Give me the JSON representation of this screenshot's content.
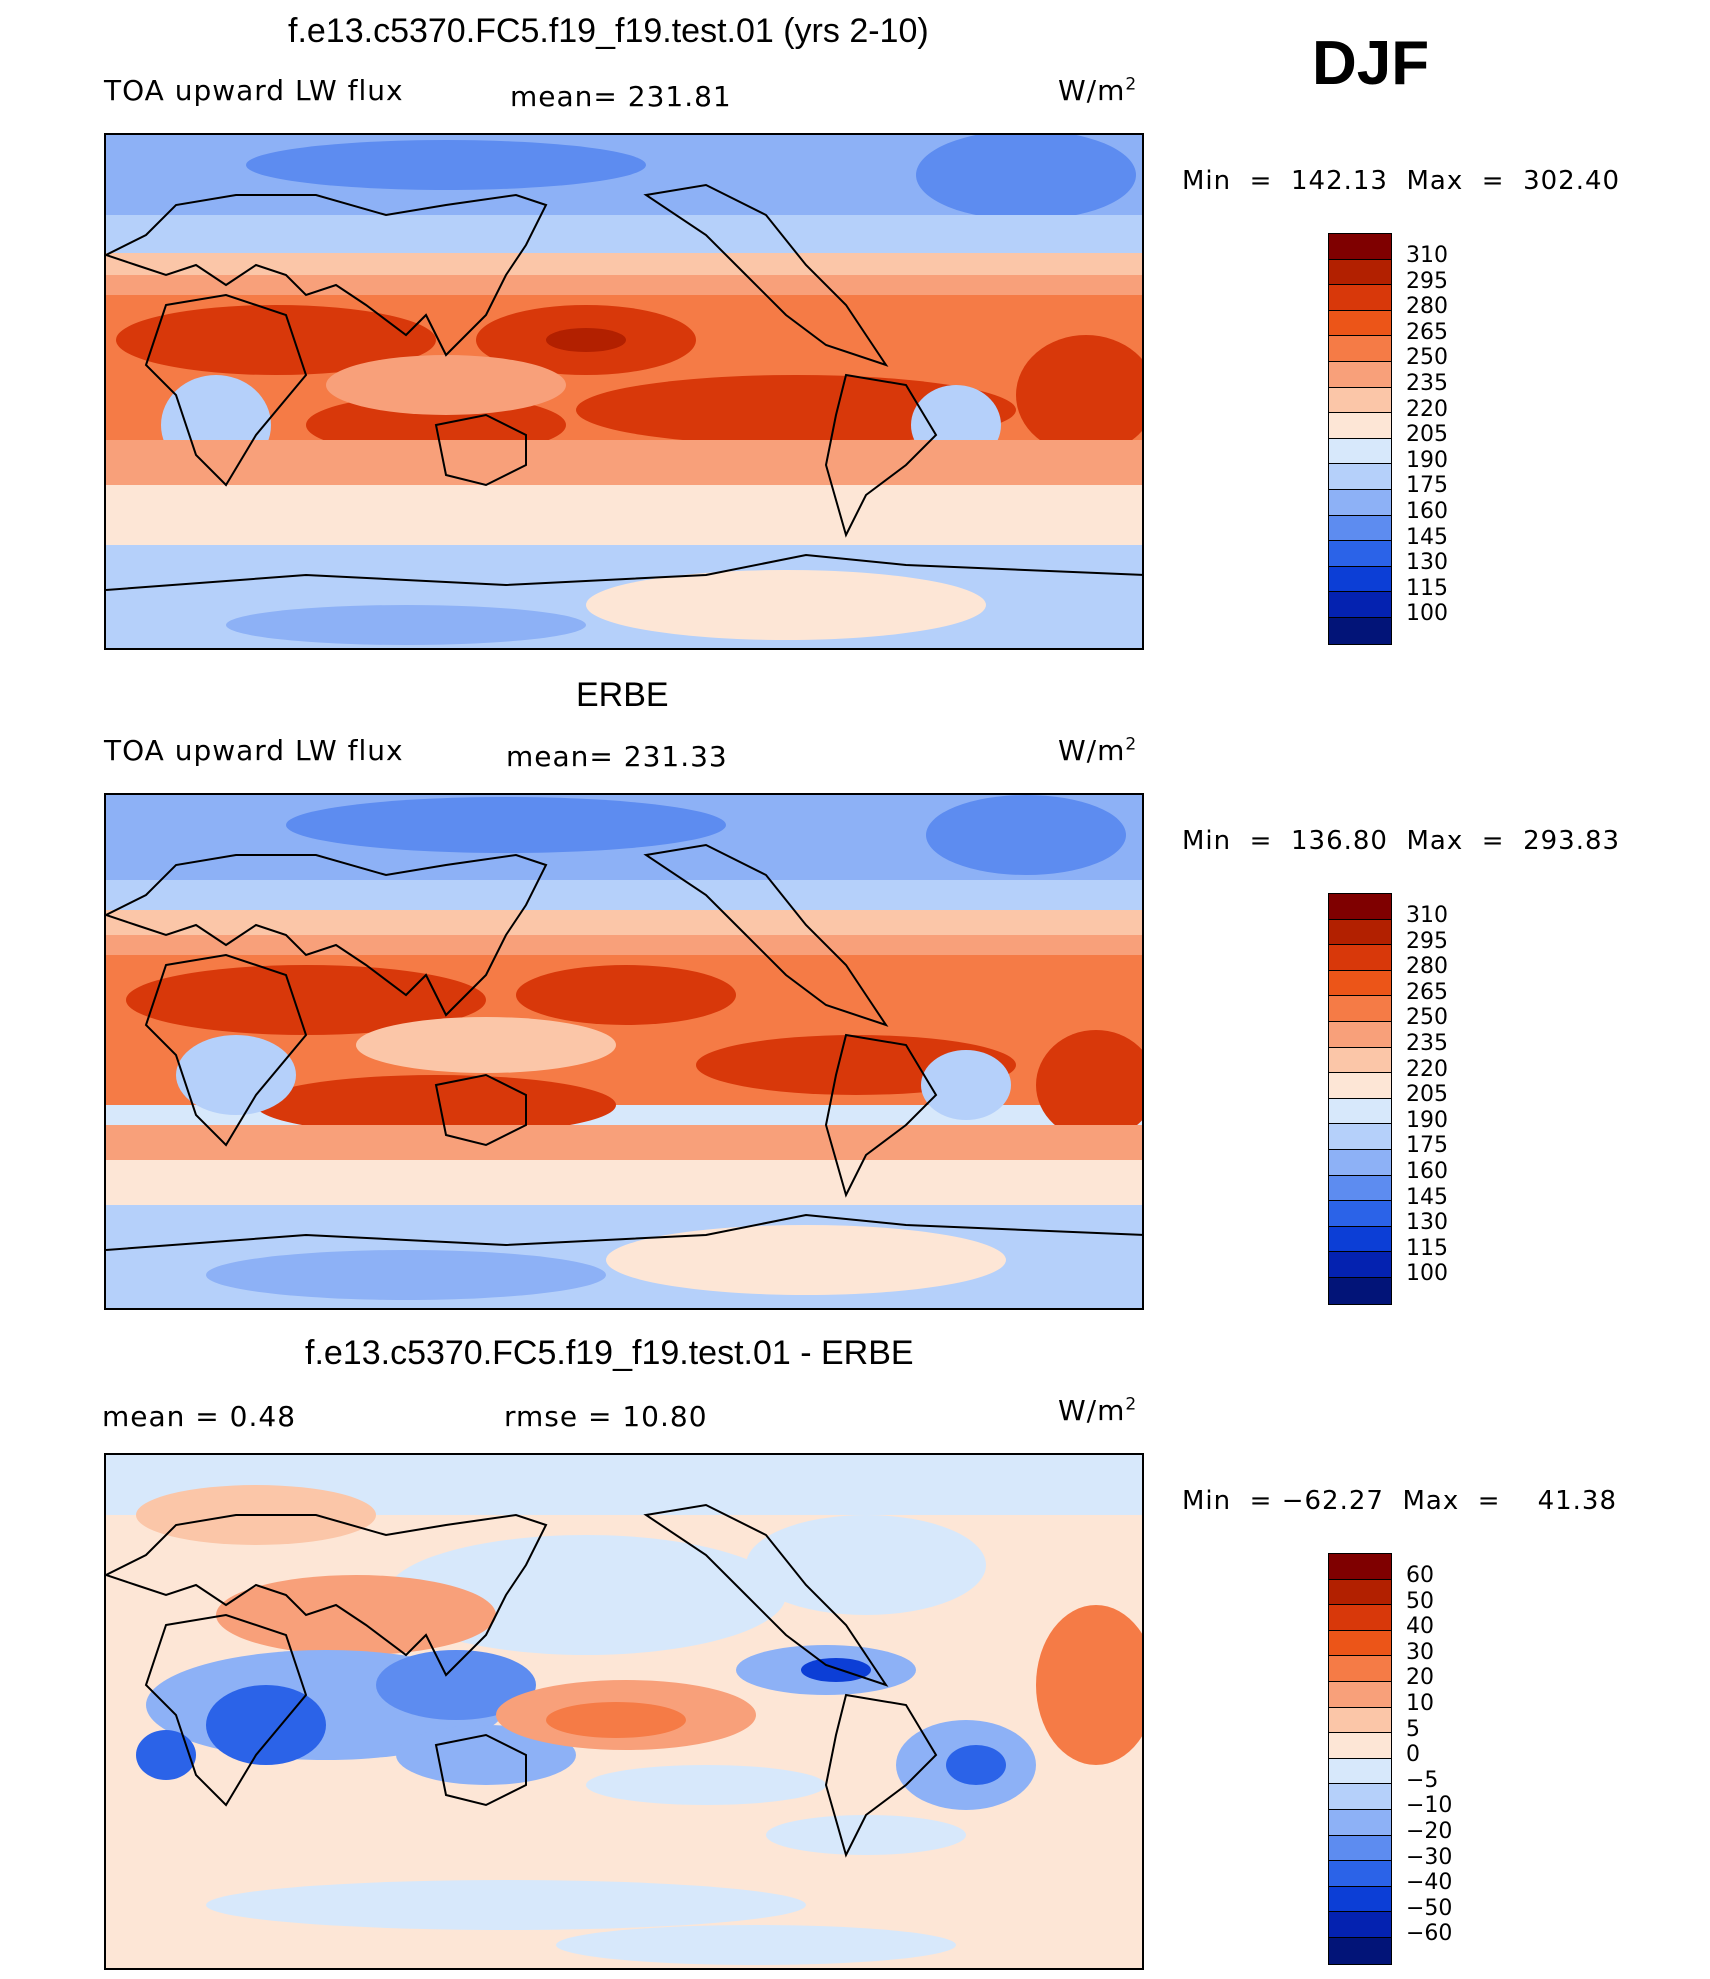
{
  "season": "DJF",
  "panels": [
    {
      "title": "f.e13.c5370.FC5.f19_f19.test.01 (yrs 2-10)",
      "left_label": "TOA upward LW flux",
      "mid_label": "mean= 231.81",
      "units_base": "W/m",
      "units_exp": "2",
      "minmax": "Min  =  142.13  Max  =  302.40",
      "colorbar_labels": [
        "310",
        "295",
        "280",
        "265",
        "250",
        "235",
        "220",
        "205",
        "190",
        "175",
        "160",
        "145",
        "130",
        "115",
        "100"
      ]
    },
    {
      "title": "ERBE",
      "left_label": "TOA upward LW flux",
      "mid_label": "mean= 231.33",
      "units_base": "W/m",
      "units_exp": "2",
      "minmax": "Min  =  136.80  Max  =  293.83",
      "colorbar_labels": [
        "310",
        "295",
        "280",
        "265",
        "250",
        "235",
        "220",
        "205",
        "190",
        "175",
        "160",
        "145",
        "130",
        "115",
        "100"
      ]
    },
    {
      "title": "f.e13.c5370.FC5.f19_f19.test.01 - ERBE",
      "left_label": "mean  =     0.48",
      "mid_label": "rmse  =    10.80",
      "units_base": "W/m",
      "units_exp": "2",
      "minmax": "Min  = −62.27  Max  =    41.38",
      "colorbar_labels": [
        "60",
        "50",
        "40",
        "30",
        "20",
        "10",
        "5",
        "0",
        "−5",
        "−10",
        "−20",
        "−30",
        "−40",
        "−50",
        "−60"
      ]
    }
  ],
  "colors": {
    "colorbar": [
      "#7f0000",
      "#b22000",
      "#d8380a",
      "#ec5518",
      "#f57b46",
      "#f8a07a",
      "#fbc6a8",
      "#fde6d6",
      "#d7e8fb",
      "#b5d0fa",
      "#8db1f6",
      "#5d8cf0",
      "#2b63e8",
      "#0c3ed6",
      "#0422b0",
      "#021478"
    ]
  }
}
